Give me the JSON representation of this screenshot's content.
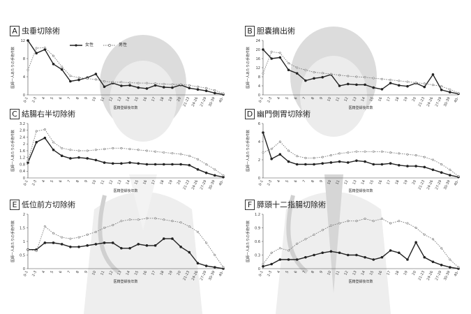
{
  "legend": {
    "female": "女性",
    "male": "男性"
  },
  "x_categories": [
    "0-1",
    "2-3",
    "4",
    "5",
    "6",
    "7",
    "8",
    "9",
    "10",
    "11",
    "12",
    "13",
    "14",
    "15",
    "16",
    "17",
    "18",
    "19",
    "20",
    "21-23",
    "24-26",
    "27-29",
    "30-39",
    "40-"
  ],
  "xlabel": "医籍登録後年数",
  "ylabel": "医師一人あたりの手術件数",
  "colors": {
    "female": "#222222",
    "male": "#777777",
    "doctor": "#e2e2e2",
    "doctor_dark": "#cfcfcf"
  },
  "chart_data": [
    {
      "type": "line",
      "letter": "A",
      "title": "虫垂切除術",
      "ylim": [
        0,
        12
      ],
      "yticks": [
        0,
        4,
        8,
        12
      ],
      "series": [
        {
          "name": "女性",
          "values": [
            12,
            9.2,
            10,
            6.8,
            5.6,
            3,
            3.3,
            3.8,
            4.6,
            1.8,
            2.6,
            2,
            2.1,
            1.6,
            1.4,
            2.1,
            1.7,
            1.6,
            2.2,
            1.5,
            1.2,
            0.9,
            0.4,
            0.1
          ]
        },
        {
          "name": "男性",
          "values": [
            5.5,
            10.3,
            10.4,
            8.6,
            6.2,
            4.2,
            3.8,
            3.6,
            3.4,
            3,
            2.8,
            2.8,
            2.7,
            2.6,
            2.6,
            2.5,
            2.4,
            2.3,
            2.3,
            2.1,
            1.8,
            1.5,
            1,
            0.3
          ]
        }
      ]
    },
    {
      "type": "line",
      "letter": "B",
      "title": "胆嚢摘出術",
      "ylim": [
        0,
        24
      ],
      "yticks": [
        0,
        4,
        8,
        12,
        16,
        20,
        24
      ],
      "series": [
        {
          "name": "女性",
          "values": [
            20,
            16,
            16.5,
            11,
            9.5,
            6.3,
            7.3,
            7.8,
            9,
            4,
            4.8,
            4.5,
            4.5,
            3.2,
            2.5,
            5.2,
            4.2,
            3.8,
            5.2,
            3.5,
            9,
            2.2,
            1.2,
            0.5
          ]
        },
        {
          "name": "男性",
          "values": [
            9.5,
            19,
            18.5,
            14,
            12,
            11,
            10,
            9.6,
            9.2,
            8.7,
            8.3,
            8,
            7.8,
            7.4,
            7,
            6.6,
            6.2,
            5.8,
            5.4,
            5,
            4.4,
            3.8,
            2.4,
            0.8
          ]
        }
      ]
    },
    {
      "type": "line",
      "letter": "C",
      "title": "結腸右半切除術",
      "ylim": [
        0,
        3.2
      ],
      "yticks": [
        0,
        0.4,
        0.8,
        1.2,
        1.6,
        2,
        2.4,
        2.8,
        3.2
      ],
      "series": [
        {
          "name": "女性",
          "values": [
            0.9,
            2.1,
            2.35,
            1.65,
            1.3,
            1.15,
            1.2,
            1.15,
            1.05,
            0.9,
            0.85,
            0.85,
            0.9,
            0.85,
            0.8,
            0.8,
            0.8,
            0.8,
            0.8,
            0.75,
            0.5,
            0.3,
            0.15,
            0.05
          ]
        },
        {
          "name": "男性",
          "values": [
            1,
            2.75,
            2.85,
            2.1,
            1.75,
            1.65,
            1.6,
            1.6,
            1.65,
            1.7,
            1.75,
            1.75,
            1.7,
            1.65,
            1.6,
            1.55,
            1.5,
            1.45,
            1.4,
            1.3,
            1.1,
            0.8,
            0.5,
            0.15
          ]
        }
      ]
    },
    {
      "type": "line",
      "letter": "D",
      "title": "幽門側胃切除術",
      "ylim": [
        0,
        6
      ],
      "yticks": [
        0,
        2,
        4,
        6
      ],
      "series": [
        {
          "name": "女性",
          "values": [
            5,
            2.1,
            2.6,
            1.8,
            1.5,
            1.5,
            1.5,
            1.6,
            1.7,
            1.8,
            1.7,
            1.9,
            1.8,
            1.5,
            1.5,
            1.6,
            1.4,
            1.3,
            1.3,
            1.2,
            0.9,
            0.6,
            0.3,
            0.1
          ]
        },
        {
          "name": "男性",
          "values": [
            2.8,
            3.2,
            4,
            3,
            2.4,
            2.2,
            2.2,
            2.3,
            2.5,
            2.7,
            2.8,
            2.9,
            2.9,
            2.9,
            2.9,
            2.8,
            2.7,
            2.6,
            2.5,
            2.3,
            2,
            1.5,
            0.9,
            0.2
          ]
        }
      ]
    },
    {
      "type": "line",
      "letter": "E",
      "title": "低位前方切除術",
      "ylim": [
        0,
        2
      ],
      "yticks": [
        0,
        0.5,
        1,
        1.5,
        2
      ],
      "series": [
        {
          "name": "女性",
          "values": [
            0.7,
            0.7,
            0.95,
            0.95,
            0.9,
            0.8,
            0.8,
            0.85,
            0.9,
            0.95,
            0.95,
            0.75,
            0.75,
            0.9,
            0.85,
            0.85,
            1.1,
            1.1,
            0.8,
            0.6,
            0.2,
            0.1,
            0.05,
            0
          ]
        },
        {
          "name": "男性",
          "values": [
            0.7,
            0.65,
            1.55,
            1.3,
            1.15,
            1.1,
            1.15,
            1.25,
            1.35,
            1.5,
            1.6,
            1.75,
            1.8,
            1.8,
            1.85,
            1.85,
            1.8,
            1.75,
            1.7,
            1.55,
            1.35,
            0.95,
            0.5,
            0.05
          ]
        }
      ]
    },
    {
      "type": "line",
      "letter": "F",
      "title": "膵頭十二指腸切除術",
      "ylim": [
        0,
        1.2
      ],
      "yticks": [
        0,
        0.3,
        0.6,
        0.9,
        1.2
      ],
      "series": [
        {
          "name": "女性",
          "values": [
            0.05,
            0.1,
            0.2,
            0.2,
            0.2,
            0.25,
            0.3,
            0.35,
            0.38,
            0.35,
            0.3,
            0.3,
            0.25,
            0.2,
            0.25,
            0.4,
            0.35,
            0.2,
            0.58,
            0.25,
            0.15,
            0.08,
            0.03,
            0
          ]
        },
        {
          "name": "男性",
          "values": [
            0.1,
            0.35,
            0.45,
            0.4,
            0.55,
            0.65,
            0.75,
            0.85,
            0.95,
            1.0,
            1.05,
            1.05,
            1.1,
            1.05,
            1.1,
            1.0,
            1.05,
            1.0,
            0.9,
            0.75,
            0.65,
            0.45,
            0.2,
            0.03
          ]
        }
      ]
    }
  ]
}
